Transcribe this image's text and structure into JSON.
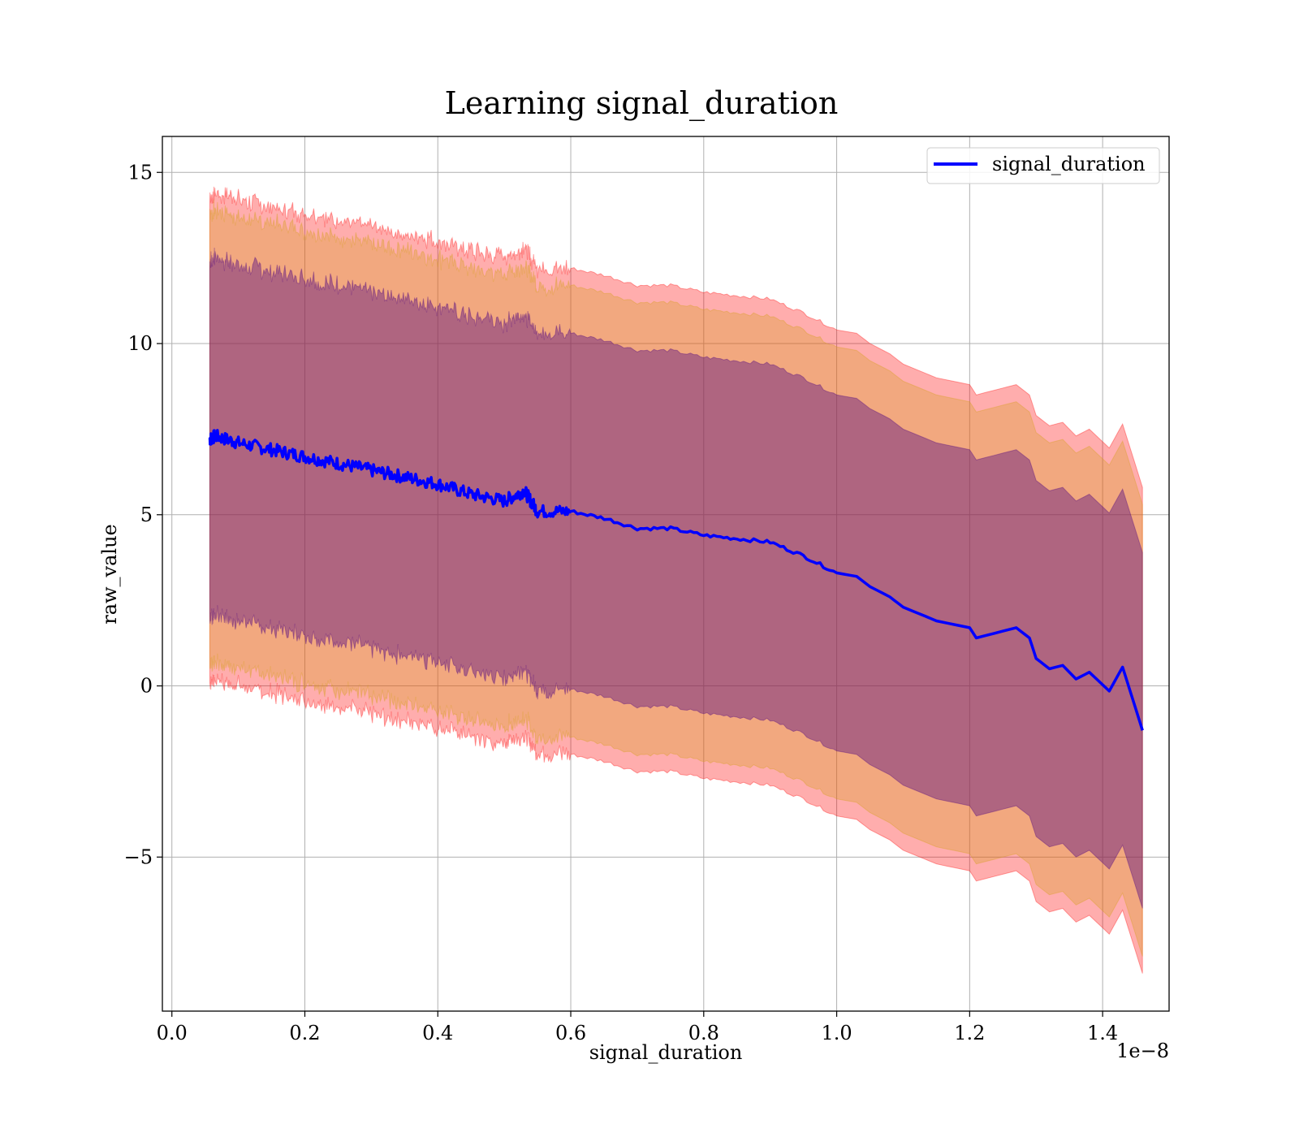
{
  "chart_data": {
    "type": "area",
    "title": "Learning signal_duration",
    "xlabel": "signal_duration",
    "ylabel": "raw_value",
    "x_offset_label": "1e−8",
    "xlim": [
      -0.0143,
      1.5
    ],
    "ylim": [
      -9.5,
      16.05
    ],
    "xticks": [
      0.0,
      0.2,
      0.4,
      0.6,
      0.8,
      1.0,
      1.2,
      1.4
    ],
    "xtick_labels": [
      "0.0",
      "0.2",
      "0.4",
      "0.6",
      "0.8",
      "1.0",
      "1.2",
      "1.4"
    ],
    "yticks": [
      15,
      10,
      5,
      0,
      -5
    ],
    "ytick_labels": [
      "15",
      "10",
      "5",
      "0",
      "−5"
    ],
    "grid": true,
    "legend_position": "top-right",
    "legend": [
      "signal_duration"
    ],
    "colors": {
      "mean_line": "#0000ff",
      "band_3sigma": "#ff0000",
      "band_2sigma": "#d4a017",
      "band_1sigma": "#4b0082",
      "grid": "#b0b0b0"
    },
    "band_opacity": {
      "band_3sigma": 0.32,
      "band_2sigma": 0.3,
      "band_1sigma": 0.4
    },
    "band_half_widths": {
      "band_1sigma": 5.2,
      "band_2sigma": 6.6,
      "band_3sigma": 7.1
    },
    "series": [
      {
        "name": "signal_duration",
        "x": [
          0.057,
          0.065,
          0.1,
          0.15,
          0.2,
          0.25,
          0.3,
          0.35,
          0.4,
          0.45,
          0.5,
          0.53,
          0.55,
          0.6,
          0.65,
          0.7,
          0.75,
          0.8,
          0.85,
          0.9,
          0.95,
          1.0,
          1.03,
          1.05,
          1.08,
          1.1,
          1.15,
          1.2,
          1.21,
          1.25,
          1.27,
          1.29,
          1.3,
          1.32,
          1.34,
          1.36,
          1.38,
          1.41,
          1.43,
          1.46
        ],
        "y": [
          7.2,
          7.3,
          7.1,
          6.9,
          6.7,
          6.5,
          6.3,
          6.1,
          5.9,
          5.6,
          5.4,
          5.7,
          5.1,
          5.1,
          4.9,
          4.6,
          4.6,
          4.4,
          4.3,
          4.2,
          3.8,
          3.3,
          3.2,
          2.9,
          2.6,
          2.3,
          1.9,
          1.7,
          1.4,
          1.6,
          1.7,
          1.4,
          0.8,
          0.5,
          0.6,
          0.2,
          0.4,
          -0.15,
          0.55,
          -1.3
        ]
      }
    ]
  }
}
